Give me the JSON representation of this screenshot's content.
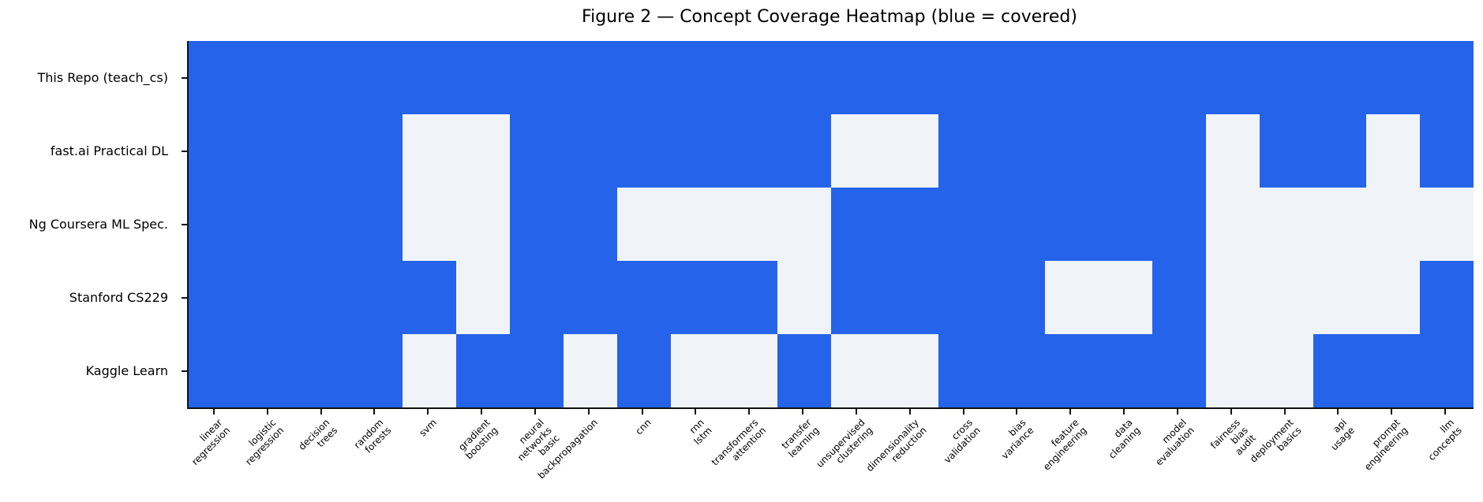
{
  "chart_data": {
    "type": "heatmap",
    "title": "Figure 2 — Concept Coverage Heatmap (blue = covered)",
    "legend_note": "blue = covered",
    "rows": [
      "This Repo (teach_cs)",
      "fast.ai Practical DL",
      "Ng Coursera ML Spec.",
      "Stanford CS229",
      "Kaggle Learn"
    ],
    "columns": [
      "linear\nregression",
      "logistic\nregression",
      "decision\ntrees",
      "random\nforests",
      "svm",
      "gradient\nboosting",
      "neural\nnetworks\nbasic",
      "backpropagation",
      "cnn",
      "rnn\nlstm",
      "transformers\nattention",
      "transfer\nlearning",
      "unsupervised\nclustering",
      "dimensionality\nreduction",
      "cross\nvalidation",
      "bias\nvariance",
      "feature\nengineering",
      "data\ncleaning",
      "model\nevaluation",
      "fairness\nbias\naudit",
      "deployment\nbasics",
      "api\nusage",
      "prompt\nengineering",
      "llm\nconcepts"
    ],
    "matrix": [
      [
        1,
        1,
        1,
        1,
        1,
        1,
        1,
        1,
        1,
        1,
        1,
        1,
        1,
        1,
        1,
        1,
        1,
        1,
        1,
        1,
        1,
        1,
        1,
        1
      ],
      [
        1,
        1,
        1,
        1,
        0,
        0,
        1,
        1,
        1,
        1,
        1,
        1,
        0,
        0,
        1,
        1,
        1,
        1,
        1,
        0,
        1,
        1,
        0,
        1
      ],
      [
        1,
        1,
        1,
        1,
        0,
        0,
        1,
        1,
        0,
        0,
        0,
        0,
        1,
        1,
        1,
        1,
        1,
        1,
        1,
        0,
        0,
        0,
        0,
        0
      ],
      [
        1,
        1,
        1,
        1,
        1,
        0,
        1,
        1,
        1,
        1,
        1,
        0,
        1,
        1,
        1,
        1,
        0,
        0,
        1,
        0,
        0,
        0,
        0,
        1
      ],
      [
        1,
        1,
        1,
        1,
        0,
        1,
        1,
        0,
        1,
        0,
        0,
        1,
        0,
        0,
        1,
        1,
        1,
        1,
        1,
        0,
        0,
        1,
        1,
        1
      ]
    ],
    "value_meaning": {
      "1": "covered",
      "0": "not covered"
    },
    "colors": {
      "covered": "#2563eb",
      "not_covered": "#f0f3f8",
      "axis": "#111111"
    },
    "layout": {
      "grid": "off",
      "x_label_rotation_deg": 45,
      "spines": [
        "left",
        "bottom"
      ]
    }
  }
}
